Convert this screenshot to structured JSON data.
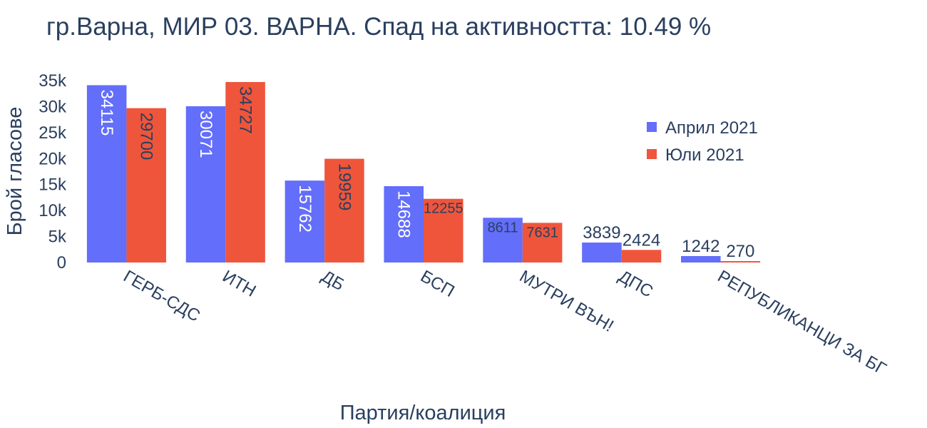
{
  "chart_data": {
    "type": "bar",
    "title": "гр.Варна, МИР 03. ВАРНА. Спад на активността: 10.49 %",
    "xlabel": "Партия/коалиция",
    "ylabel": "Брой гласове",
    "ylim": [
      0,
      35000
    ],
    "yticks": [
      {
        "value": 0,
        "label": "0"
      },
      {
        "value": 5000,
        "label": "5k"
      },
      {
        "value": 10000,
        "label": "10k"
      },
      {
        "value": 15000,
        "label": "15k"
      },
      {
        "value": 20000,
        "label": "20k"
      },
      {
        "value": 25000,
        "label": "25k"
      },
      {
        "value": 30000,
        "label": "30k"
      },
      {
        "value": 35000,
        "label": "35k"
      }
    ],
    "categories": [
      "ГЕРБ-СДС",
      "ИТН",
      "ДБ",
      "БСП",
      "МУТРИ ВЪН!",
      "ДПС",
      "РЕПУБЛИКАНЦИ ЗА БГ"
    ],
    "series": [
      {
        "name": "Април 2021",
        "color": "#636efa",
        "values": [
          34115,
          30071,
          15762,
          14688,
          8611,
          3839,
          1242
        ]
      },
      {
        "name": "Юли 2021",
        "color": "#ef553b",
        "values": [
          29700,
          34727,
          19959,
          12255,
          7631,
          2424,
          270
        ]
      }
    ],
    "grid": false,
    "legend_position": "top-right"
  }
}
